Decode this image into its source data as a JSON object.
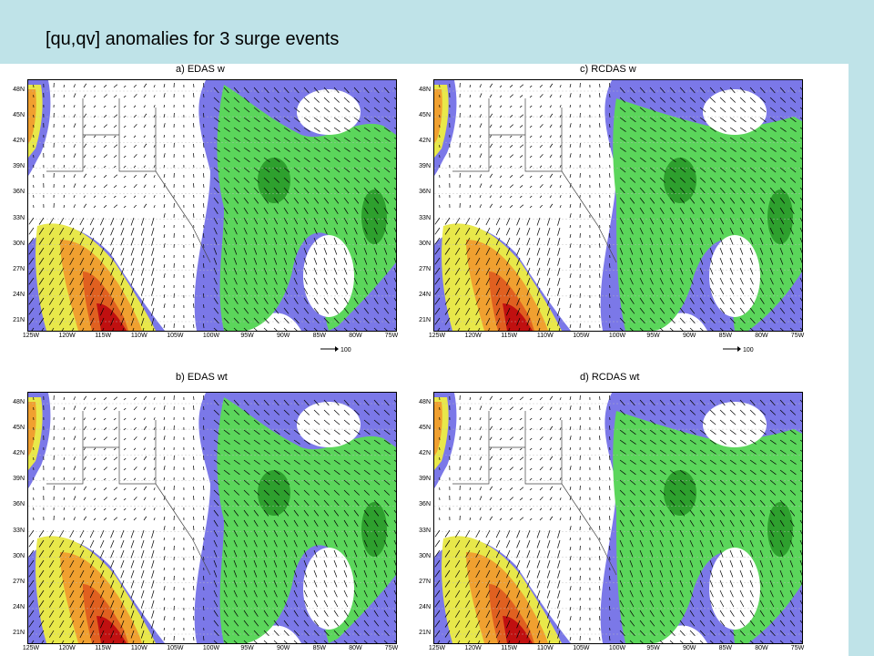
{
  "slide": {
    "title": "[qu,qv] anomalies for 3 surge events"
  },
  "panels": [
    {
      "id": "a",
      "title": "a)  EDAS  w",
      "key": "edas_w"
    },
    {
      "id": "c",
      "title": "c)  RCDAS  w",
      "key": "rcdas_w"
    },
    {
      "id": "b",
      "title": "b)  EDAS  wt",
      "key": "edas_wt"
    },
    {
      "id": "d",
      "title": "d)  RCDAS  wt",
      "key": "rcdas_wt"
    }
  ],
  "axes": {
    "lat_labels": [
      "48N",
      "45N",
      "42N",
      "39N",
      "36N",
      "33N",
      "30N",
      "27N",
      "24N",
      "21N"
    ],
    "lon_labels": [
      "125W",
      "120W",
      "115W",
      "110W",
      "105W",
      "100W",
      "95W",
      "90W",
      "85W",
      "80W",
      "75W"
    ]
  },
  "reference_vector": {
    "label": "100"
  },
  "colors": {
    "background": "#bfe3e8",
    "negative_blue": "#7b78e8",
    "negative_green": "#5bd65b",
    "negative_darkgreen": "#2ea02e",
    "positive_yellow": "#e8e84a",
    "positive_orange": "#f0a030",
    "positive_darkorange": "#e06020",
    "positive_red": "#c01010"
  }
}
